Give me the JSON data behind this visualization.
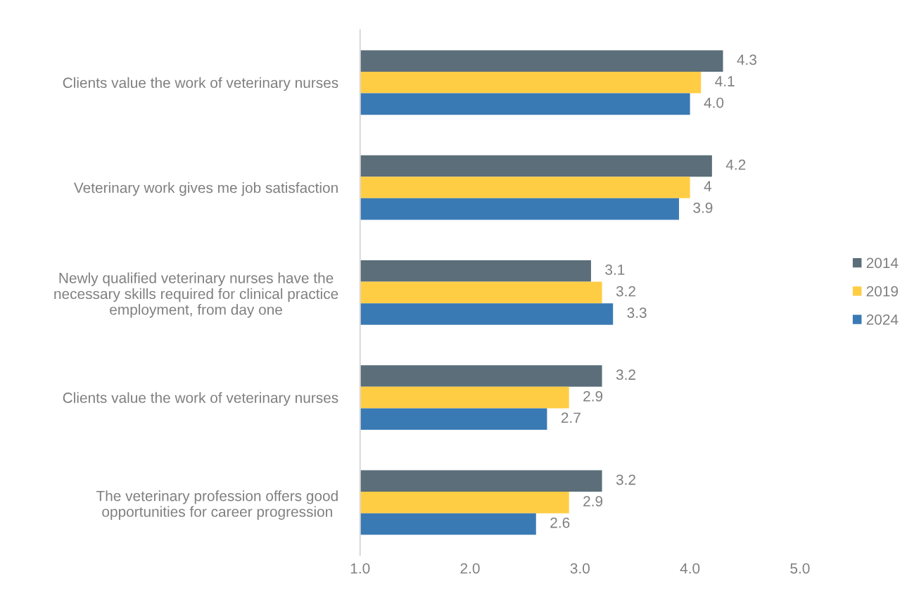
{
  "chart_data": {
    "type": "bar",
    "orientation": "horizontal",
    "categories": [
      "Clients value the work of veterinary nurses",
      "Veterinary work gives me job satisfaction",
      "Newly qualified veterinary nurses have the\nnecessary skills required for clinical practice\nemployment, from day one",
      "Clients value the work of veterinary nurses",
      "The veterinary profession offers good\nopportunities for career progression"
    ],
    "series": [
      {
        "name": "2014",
        "color": "#5b6e7a",
        "values": [
          4.3,
          4.2,
          3.1,
          3.2,
          3.2
        ],
        "value_labels": [
          "4.3",
          "4.2",
          "3.1",
          "3.2",
          "3.2"
        ]
      },
      {
        "name": "2019",
        "color": "#ffcd44",
        "values": [
          4.1,
          4.0,
          3.2,
          2.9,
          2.9
        ],
        "value_labels": [
          "4.1",
          "4",
          "3.2",
          "2.9",
          "2.9"
        ]
      },
      {
        "name": "2024",
        "color": "#3a7ab4",
        "values": [
          4.0,
          3.9,
          3.3,
          2.7,
          2.6
        ],
        "value_labels": [
          "4.0",
          "3.9",
          "3.3",
          "2.7",
          "2.6"
        ]
      }
    ],
    "xlim": [
      1.0,
      5.0
    ],
    "xticks": [
      {
        "value": 1,
        "label": "1.0"
      },
      {
        "value": 2,
        "label": "2.0"
      },
      {
        "value": 3,
        "label": "3.0"
      },
      {
        "value": 4,
        "label": "4.0"
      },
      {
        "value": 5,
        "label": "5.0"
      }
    ],
    "grid": false,
    "legend": "right"
  }
}
